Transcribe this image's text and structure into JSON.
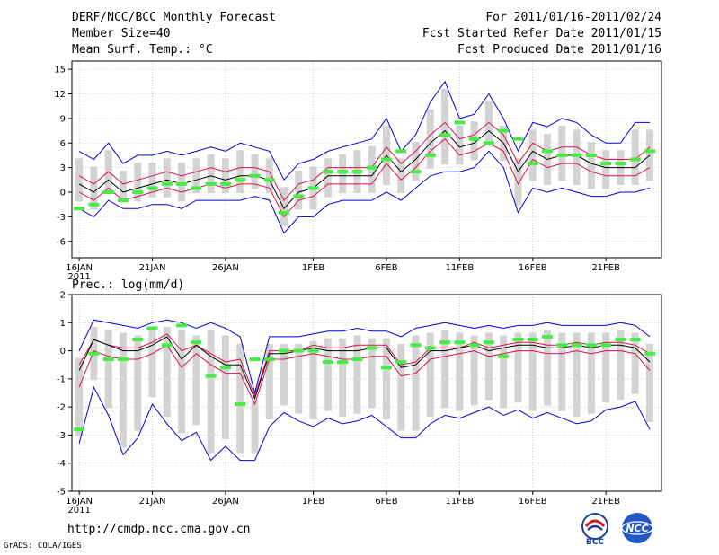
{
  "header": {
    "title": "DERF/NCC/BCC Monthly Forecast",
    "member": "Member Size=40",
    "variable": "Mean Surf. Temp.: °C",
    "period": "For 2011/01/16-2011/02/24",
    "refer": "Fcst Started Refer Date 2011/01/15",
    "produced": "Fcst Produced Date 2011/01/16"
  },
  "footer": {
    "url": "http://cmdp.ncc.cma.gov.cn",
    "credit": "GrADS: COLA/IGES",
    "logo1": "BCC",
    "logo2": "NCC"
  },
  "colors": {
    "mean": "#000000",
    "spread": "#dd1144",
    "range": "#0000dd",
    "member": "#d3d3d3",
    "obs": "#44ee44"
  },
  "chart_data": [
    {
      "type": "line",
      "title": "Mean Surf. Temp.: °C",
      "x": [
        16,
        17,
        18,
        19,
        20,
        21,
        22,
        23,
        24,
        25,
        26,
        27,
        28,
        29,
        30,
        31,
        32,
        33,
        34,
        35,
        36,
        37,
        38,
        39,
        40,
        41,
        42,
        43,
        44,
        45,
        46,
        47,
        48,
        49,
        50,
        51,
        52,
        53,
        54,
        55
      ],
      "x_ticks": [
        {
          "day": 16,
          "label": "16JAN",
          "sub": "2011"
        },
        {
          "day": 21,
          "label": "21JAN"
        },
        {
          "day": 26,
          "label": "26JAN"
        },
        {
          "day": 32,
          "label": "1FEB"
        },
        {
          "day": 37,
          "label": "6FEB"
        },
        {
          "day": 42,
          "label": "11FEB"
        },
        {
          "day": 47,
          "label": "16FEB"
        },
        {
          "day": 52,
          "label": "21FEB"
        }
      ],
      "ylim": [
        -8,
        16
      ],
      "y_ticks": [
        -6,
        -3,
        0,
        3,
        6,
        9,
        12,
        15
      ],
      "series": [
        {
          "name": "max",
          "role": "range",
          "values": [
            5,
            4,
            6,
            3.5,
            4.5,
            4.5,
            5,
            4.5,
            5,
            5.5,
            5,
            6,
            5.5,
            5,
            1.5,
            3.5,
            4,
            5,
            5.5,
            6,
            6.5,
            9,
            5,
            7,
            11,
            13.5,
            9,
            9.5,
            12,
            9,
            5,
            8.5,
            8,
            9,
            8.5,
            7,
            6,
            6,
            8.5,
            8.5
          ]
        },
        {
          "name": "upper",
          "role": "spread",
          "values": [
            2,
            1,
            2.5,
            1,
            1.5,
            2,
            2.5,
            2,
            2.5,
            3,
            2.5,
            3,
            3,
            2.5,
            -1,
            1,
            1.5,
            3,
            3,
            3,
            3,
            5.5,
            3.5,
            5,
            7,
            8.5,
            6.5,
            7,
            8.5,
            7,
            3.5,
            6,
            5,
            5.5,
            5.5,
            4.5,
            4,
            4,
            4,
            5.5
          ]
        },
        {
          "name": "mean",
          "role": "mean",
          "values": [
            1,
            0,
            1.5,
            0,
            0.5,
            1,
            1.5,
            1,
            1.5,
            2,
            1.5,
            2,
            2,
            1.5,
            -2,
            0,
            0.5,
            2,
            2,
            2,
            2,
            4.5,
            2.5,
            4,
            6,
            7.5,
            5.5,
            6,
            7.5,
            6,
            2.5,
            5,
            4,
            4.5,
            4.5,
            3.5,
            3,
            3,
            3,
            4.5
          ]
        },
        {
          "name": "lower",
          "role": "spread",
          "values": [
            0,
            -1,
            0.5,
            -1,
            -0.5,
            0,
            0.5,
            0,
            0.5,
            1,
            0.5,
            1,
            1,
            0.5,
            -3,
            -1,
            -0.5,
            1,
            1,
            1,
            1,
            3.5,
            1.5,
            3,
            5,
            6.5,
            4.5,
            5,
            6,
            5,
            1,
            4,
            3,
            3.5,
            3.5,
            2.5,
            2,
            2,
            2,
            3
          ]
        },
        {
          "name": "min",
          "role": "range",
          "values": [
            -2,
            -3,
            -1,
            -2,
            -2,
            -1.5,
            -1.5,
            -2,
            -1,
            -1,
            -1,
            -1,
            -0.5,
            -1,
            -5,
            -3,
            -3,
            -1.5,
            -1,
            -1,
            -1,
            0,
            -1,
            0.5,
            2,
            2.5,
            2.5,
            3,
            5,
            3,
            -2.5,
            0.5,
            0,
            0.5,
            0,
            -0.5,
            -0.5,
            0,
            0,
            0.5
          ]
        },
        {
          "name": "observed",
          "role": "obs",
          "values": [
            -2,
            -1.5,
            0,
            -1,
            0,
            0.5,
            1,
            1,
            0.5,
            1,
            1,
            1.5,
            2,
            1.5,
            -2.5,
            -0.5,
            0.5,
            2.5,
            2.5,
            2.5,
            3,
            4,
            5,
            2.5,
            4.5,
            7,
            8.5,
            6.5,
            6,
            7.5,
            6.5,
            3.5,
            5,
            4.5,
            4.5,
            4.5,
            3.5,
            3.5,
            4,
            5
          ]
        }
      ]
    },
    {
      "type": "line",
      "title": "Prec.: log(mm/d)",
      "x": [
        16,
        17,
        18,
        19,
        20,
        21,
        22,
        23,
        24,
        25,
        26,
        27,
        28,
        29,
        30,
        31,
        32,
        33,
        34,
        35,
        36,
        37,
        38,
        39,
        40,
        41,
        42,
        43,
        44,
        45,
        46,
        47,
        48,
        49,
        50,
        51,
        52,
        53,
        54,
        55
      ],
      "x_ticks": [
        {
          "day": 16,
          "label": "16JAN",
          "sub": "2011"
        },
        {
          "day": 21,
          "label": "21JAN"
        },
        {
          "day": 26,
          "label": "26JAN"
        },
        {
          "day": 32,
          "label": "1FEB"
        },
        {
          "day": 37,
          "label": "6FEB"
        },
        {
          "day": 42,
          "label": "11FEB"
        },
        {
          "day": 47,
          "label": "16FEB"
        },
        {
          "day": 52,
          "label": "21FEB"
        }
      ],
      "ylim": [
        -5,
        2
      ],
      "y_ticks": [
        -5,
        -4,
        -3,
        -2,
        -1,
        0,
        1,
        2
      ],
      "series": [
        {
          "name": "max",
          "role": "range",
          "values": [
            0,
            1.1,
            1,
            0.9,
            0.8,
            1,
            1.1,
            1,
            0.8,
            1,
            0.8,
            0.5,
            -1.5,
            0.5,
            0.5,
            0.5,
            0.6,
            0.7,
            0.7,
            0.8,
            0.7,
            0.7,
            0.5,
            0.8,
            0.9,
            1,
            0.9,
            0.8,
            0.9,
            0.8,
            0.9,
            0.9,
            1,
            0.9,
            0.9,
            0.9,
            0.9,
            1,
            0.9,
            0.5
          ]
        },
        {
          "name": "upper",
          "role": "spread",
          "values": [
            -0.5,
            0.4,
            0.2,
            0.1,
            0.1,
            0.3,
            0.6,
            0,
            0.2,
            -0.1,
            -0.4,
            -0.3,
            -1.6,
            0,
            0,
            0,
            0.2,
            0.1,
            0.1,
            0.2,
            0.2,
            0.2,
            -0.5,
            -0.4,
            0.1,
            0.1,
            0.1,
            0.3,
            0.1,
            0.2,
            0.3,
            0.3,
            0.2,
            0.2,
            0.3,
            0.2,
            0.3,
            0.3,
            0.2,
            -0.1
          ]
        },
        {
          "name": "mean",
          "role": "mean",
          "values": [
            -0.7,
            0.4,
            0.2,
            0,
            0,
            0.2,
            0.5,
            -0.3,
            0.2,
            -0.2,
            -0.5,
            -0.5,
            -1.7,
            -0.1,
            -0.1,
            0,
            0.1,
            0,
            0,
            0,
            0.1,
            0.1,
            -0.6,
            -0.5,
            0,
            0,
            0.1,
            0.2,
            0,
            0.1,
            0.2,
            0.2,
            0.1,
            0.1,
            0.2,
            0.1,
            0.2,
            0.2,
            0.1,
            -0.4
          ]
        },
        {
          "name": "lower",
          "role": "spread",
          "values": [
            -1.3,
            0,
            -0.2,
            -0.3,
            -0.3,
            -0.1,
            0.2,
            -0.6,
            -0.1,
            -0.5,
            -0.8,
            -0.8,
            -1.9,
            -0.3,
            -0.3,
            -0.2,
            -0.1,
            -0.2,
            -0.3,
            -0.3,
            -0.2,
            -0.2,
            -0.9,
            -0.8,
            -0.3,
            -0.2,
            -0.1,
            0,
            -0.2,
            -0.1,
            0,
            0,
            -0.1,
            -0.1,
            0,
            -0.1,
            0,
            0,
            -0.1,
            -0.7
          ]
        },
        {
          "name": "min",
          "role": "range",
          "values": [
            -3.3,
            -1.3,
            -2.3,
            -3.7,
            -3.1,
            -1.9,
            -2.6,
            -3.2,
            -2.9,
            -3.9,
            -3.4,
            -3.9,
            -3.9,
            -2.7,
            -2.2,
            -2.5,
            -2.7,
            -2.4,
            -2.6,
            -2.5,
            -2.3,
            -2.7,
            -3.1,
            -3.1,
            -2.6,
            -2.3,
            -2.4,
            -2.2,
            -2,
            -2.3,
            -2.1,
            -2.4,
            -2.2,
            -2.4,
            -2.6,
            -2.5,
            -2.1,
            -2,
            -1.8,
            -2.8
          ]
        },
        {
          "name": "observed",
          "role": "obs",
          "values": [
            -2.8,
            -0.1,
            -0.3,
            -0.3,
            0.4,
            0.8,
            0.2,
            0.9,
            0.3,
            -0.9,
            -0.6,
            -1.9,
            -0.3,
            -0.3,
            0,
            0,
            0,
            -0.4,
            -0.4,
            -0.3,
            0.1,
            -0.6,
            -0.4,
            0.2,
            0.1,
            0.3,
            0.3,
            0.2,
            0.3,
            -0.2,
            0.4,
            0.4,
            0.5,
            0.2,
            0.2,
            0.2,
            0.2,
            0.4,
            0.4,
            -0.1
          ]
        }
      ]
    }
  ]
}
